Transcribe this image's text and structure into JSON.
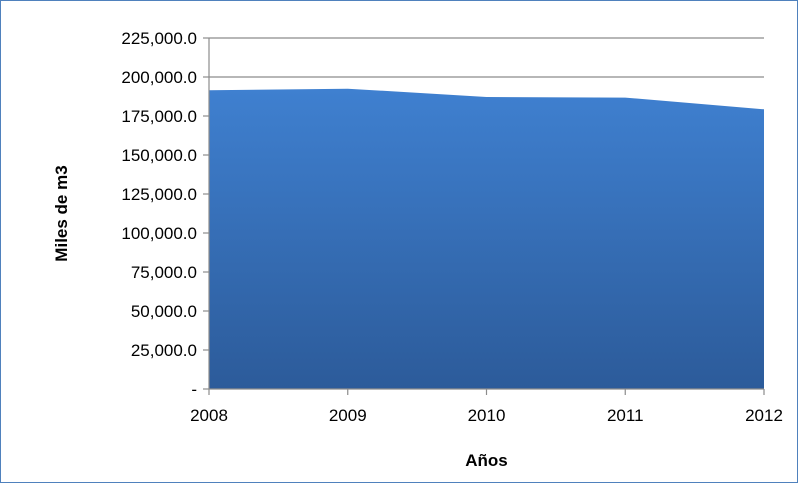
{
  "chart_data": {
    "type": "area",
    "title": "",
    "xlabel": "Años",
    "ylabel": "Miles de m3",
    "categories": [
      "2008",
      "2009",
      "2010",
      "2011",
      "2012"
    ],
    "series": [
      {
        "values": [
          191500,
          192500,
          187200,
          186800,
          179300
        ]
      }
    ],
    "ylim": [
      0,
      225000
    ],
    "yticks": [
      {
        "value": 0,
        "label": "-"
      },
      {
        "value": 25000,
        "label": "25,000.0"
      },
      {
        "value": 50000,
        "label": "50,000.0"
      },
      {
        "value": 75000,
        "label": "75,000.0"
      },
      {
        "value": 100000,
        "label": "100,000.0"
      },
      {
        "value": 125000,
        "label": "125,000.0"
      },
      {
        "value": 150000,
        "label": "150,000.0"
      },
      {
        "value": 175000,
        "label": "175,000.0"
      },
      {
        "value": 200000,
        "label": "200,000.0"
      },
      {
        "value": 225000,
        "label": "225,000.0"
      }
    ],
    "grid": true,
    "legend": "none",
    "colors": {
      "fill_top": "#3f80d0",
      "fill_bottom": "#2c5b9a",
      "gridline": "#8c8c8c",
      "axis": "#8c8c8c",
      "border": "#4f81bd"
    }
  }
}
